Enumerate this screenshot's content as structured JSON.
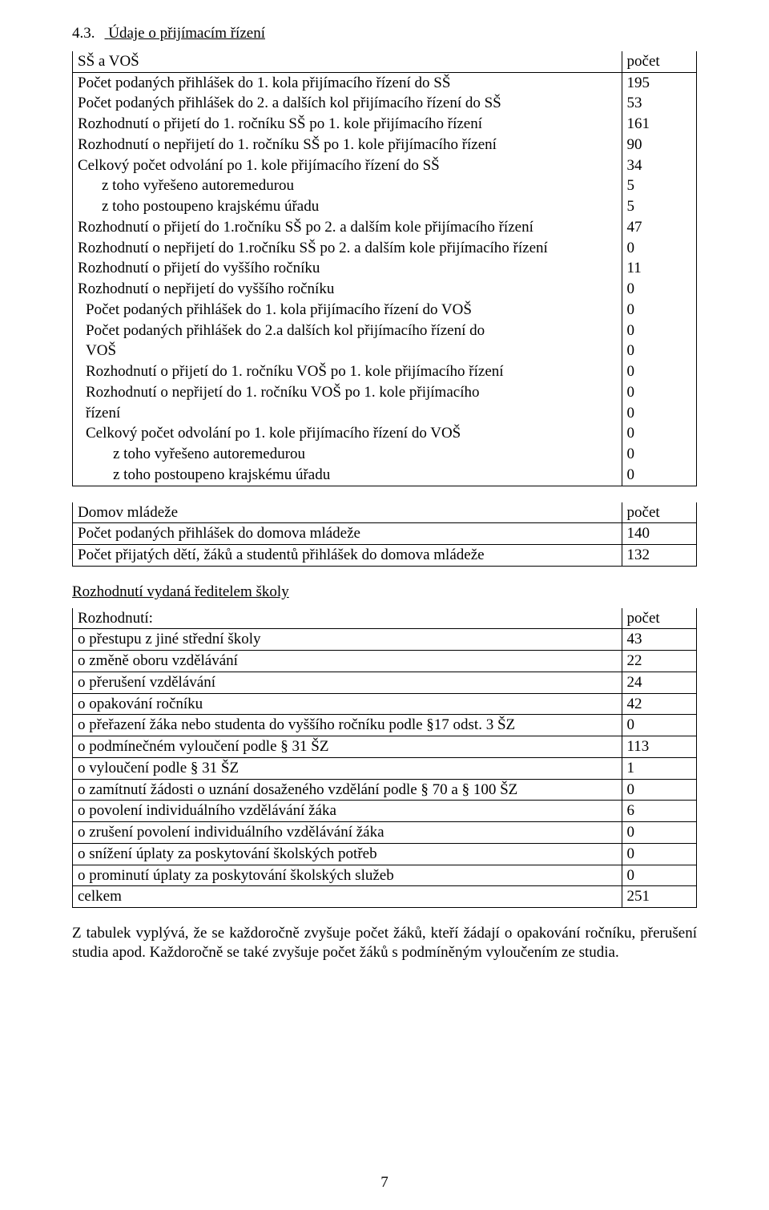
{
  "section": {
    "number": "4.3.",
    "title": "Údaje o přijímacím řízení"
  },
  "tableA": {
    "col_widths": {
      "label_pct": 88,
      "value_pct": 12
    },
    "header": {
      "label": "SŠ a VOŠ",
      "value": "počet"
    },
    "rows": [
      {
        "label": "Počet podaných přihlášek do 1. kola přijímacího řízení do SŠ",
        "value": "195"
      },
      {
        "label": "Počet podaných přihlášek do 2. a dalších kol přijímacího řízení do SŠ",
        "value": "53"
      },
      {
        "label": "Rozhodnutí o přijetí do 1. ročníku SŠ po 1. kole přijímacího řízení",
        "value": "161"
      },
      {
        "label": "Rozhodnutí o nepřijetí do 1. ročníku SŠ po 1. kole přijímacího řízení",
        "value": "90"
      },
      {
        "label": "Celkový počet odvolání po 1. kole přijímacího řízení do SŠ",
        "value": "34"
      },
      {
        "label": "z toho vyřešeno autoremedurou",
        "value": "5",
        "indent": 1
      },
      {
        "label": "z toho postoupeno krajskému úřadu",
        "value": "5",
        "indent": 1
      },
      {
        "label": "Rozhodnutí o přijetí do 1.ročníku SŠ po 2. a dalším kole přijímacího řízení",
        "value": "47"
      },
      {
        "label": "Rozhodnutí o nepřijetí do 1.ročníku SŠ po 2. a dalším kole přijímacího řízení",
        "value": "0"
      },
      {
        "label": "Rozhodnutí o přijetí do vyššího ročníku",
        "value": "11"
      },
      {
        "label": "Rozhodnutí o nepřijetí do vyššího ročníku",
        "value": "0"
      },
      {
        "label": "Počet podaných přihlášek do 1. kola přijímacího řízení do VOŠ",
        "value": "0",
        "indent": 0.5
      },
      {
        "label": "Počet podaných přihlášek do 2.a dalších kol přijímacího řízení do",
        "value": "0",
        "indent": 0.5
      },
      {
        "label": "VOŠ",
        "value": "0",
        "indent": 0.5
      },
      {
        "label": "Rozhodnutí o přijetí do 1. ročníku VOŠ po 1. kole přijímacího řízení",
        "value": "0",
        "indent": 0.5
      },
      {
        "label": "Rozhodnutí o nepřijetí do 1. ročníku VOŠ po 1. kole přijímacího",
        "value": "0",
        "indent": 0.5
      },
      {
        "label": "řízení",
        "value": "0",
        "indent": 0.5
      },
      {
        "label": "Celkový počet odvolání po 1. kole přijímacího řízení do VOŠ",
        "value": "0",
        "indent": 0.5
      },
      {
        "label": "z toho vyřešeno autoremedurou",
        "value": "0",
        "indent": 2
      },
      {
        "label": "z toho postoupeno krajskému úřadu",
        "value": "0",
        "indent": 2
      }
    ]
  },
  "tableB": {
    "col_widths": {
      "label_pct": 88,
      "value_pct": 12
    },
    "header": {
      "label": "Domov mládeže",
      "value": "počet"
    },
    "rows": [
      {
        "label": "Počet podaných přihlášek do domova mládeže",
        "value": "140"
      },
      {
        "label": "Počet přijatých dětí, žáků a studentů přihlášek do domova mládeže",
        "value": "132"
      }
    ]
  },
  "subheading": "Rozhodnutí vydaná ředitelem školy",
  "tableC": {
    "col_widths": {
      "label_pct": 88,
      "value_pct": 12
    },
    "header": {
      "label": "Rozhodnutí:",
      "value": "počet"
    },
    "rows": [
      {
        "label": "o přestupu z jiné střední školy",
        "value": "43"
      },
      {
        "label": "o změně oboru vzdělávání",
        "value": "22"
      },
      {
        "label": "o přerušení vzdělávání",
        "value": "24"
      },
      {
        "label": "o opakování ročníku",
        "value": "42"
      },
      {
        "label": "o přeřazení žáka nebo studenta do vyššího ročníku podle §17 odst. 3 ŠZ",
        "value": "0"
      },
      {
        "label": "o podmínečném vyloučení podle § 31 ŠZ",
        "value": "113"
      },
      {
        "label": "o vyloučení podle § 31 ŠZ",
        "value": "1"
      },
      {
        "label": "o zamítnutí žádosti o uznání dosaženého vzdělání podle § 70 a § 100 ŠZ",
        "value": "0"
      },
      {
        "label": "o povolení individuálního vzdělávání žáka",
        "value": "6"
      },
      {
        "label": "o zrušení povolení individuálního vzdělávání žáka",
        "value": "0"
      },
      {
        "label": "o snížení úplaty za poskytování školských potřeb",
        "value": "0"
      },
      {
        "label": "o prominutí úplaty za poskytování školských služeb",
        "value": "0"
      },
      {
        "label": "celkem",
        "value": "251"
      }
    ]
  },
  "paragraph": "Z tabulek vyplývá, že se každoročně zvyšuje počet žáků, kteří žádají o opakování ročníku, přerušení studia apod. Každoročně se také zvyšuje počet žáků s podmíněným vyloučením ze studia.",
  "page_number": "7"
}
